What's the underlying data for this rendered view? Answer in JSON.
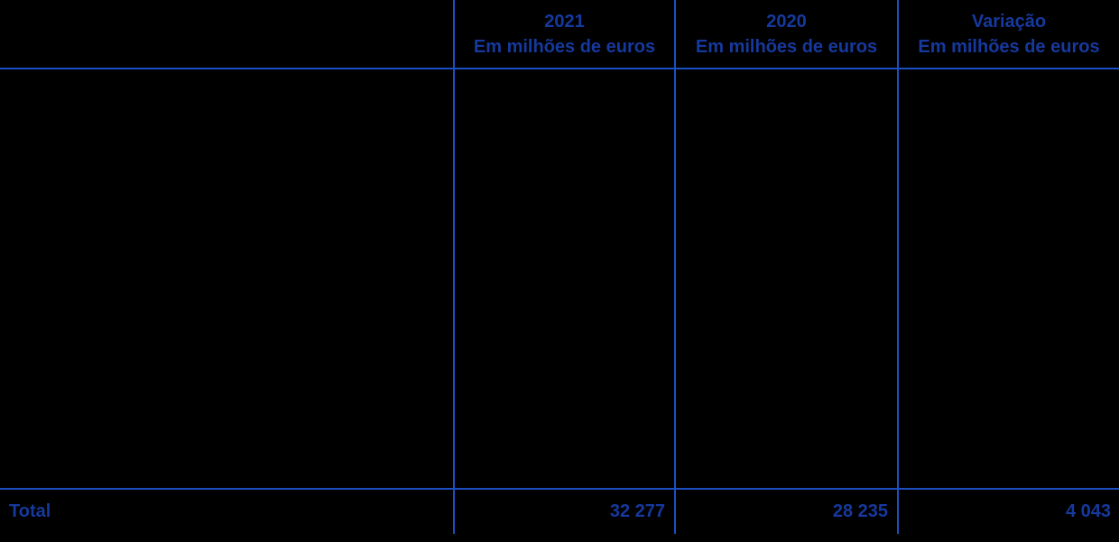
{
  "table": {
    "header": {
      "columns": [
        {
          "title": "2021",
          "unit": "Em milhões de euros"
        },
        {
          "title": "2020",
          "unit": "Em milhões de euros"
        },
        {
          "title": "Variação",
          "unit": "Em milhões de euros"
        }
      ]
    },
    "total": {
      "label": "Total",
      "values": [
        "32 277",
        "28 235",
        "4 043"
      ]
    },
    "colors": {
      "text": "#16399E",
      "line": "#1C4FC2",
      "background": "#000000"
    }
  }
}
